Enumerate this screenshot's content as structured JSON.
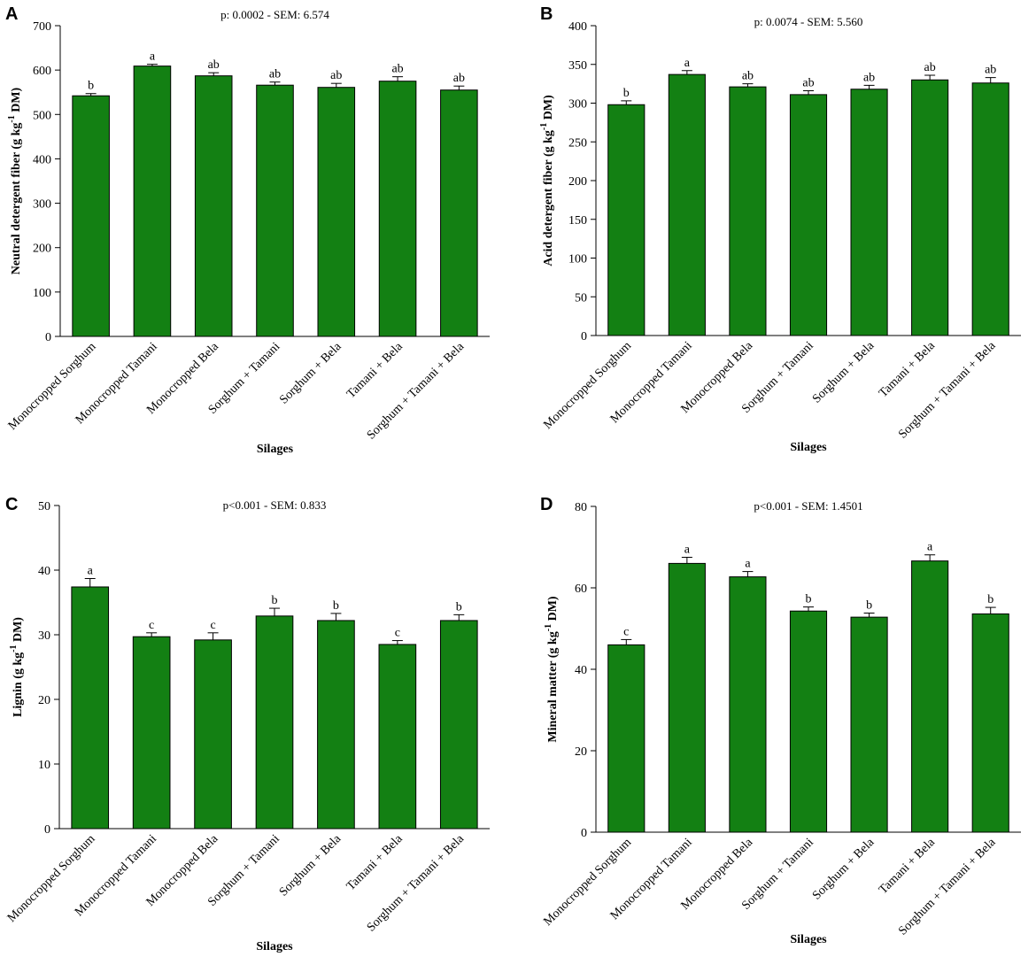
{
  "categories": [
    "Monocropped Sorghum",
    "Monocropped Tamani",
    "Monocropped Bela",
    "Sorghum + Tamani",
    "Sorghum + Bela",
    "Tamani + Bela",
    "Sorghum + Tamani + Bela"
  ],
  "colors": {
    "bar_fill": "#138013",
    "bar_stroke": "#000000",
    "axis": "#000000"
  },
  "chart_data": [
    {
      "type": "bar",
      "panel": "A",
      "annotation": "p: 0.0002 - SEM: 6.574",
      "xlabel": "Silages",
      "ylabel_main": "Neutral detergent fiber (g kg",
      "ylabel_sup": "-1",
      "ylabel_end": " DM)",
      "ylim": [
        0,
        700
      ],
      "yticks": [
        0,
        100,
        200,
        300,
        400,
        500,
        600,
        700
      ],
      "values": [
        542,
        609,
        587,
        566,
        561,
        575,
        555
      ],
      "errors": [
        5,
        4,
        7,
        7,
        9,
        10,
        9
      ],
      "letters": [
        "b",
        "a",
        "ab",
        "ab",
        "ab",
        "ab",
        "ab"
      ]
    },
    {
      "type": "bar",
      "panel": "B",
      "annotation": "p: 0.0074 - SEM: 5.560",
      "xlabel": "Silages",
      "ylabel_main": "Acid detergent fiber (g kg",
      "ylabel_sup": "-1",
      "ylabel_end": " DM)",
      "ylim": [
        0,
        400
      ],
      "yticks": [
        0,
        50,
        100,
        150,
        200,
        250,
        300,
        350,
        400
      ],
      "values": [
        298,
        337,
        321,
        311,
        318,
        330,
        326
      ],
      "errors": [
        5,
        5,
        4,
        5,
        5,
        6,
        7
      ],
      "letters": [
        "b",
        "a",
        "ab",
        "ab",
        "ab",
        "ab",
        "ab"
      ]
    },
    {
      "type": "bar",
      "panel": "C",
      "annotation": "p<0.001 - SEM: 0.833",
      "xlabel": "Silages",
      "ylabel_main": "Lignin (g kg",
      "ylabel_sup": "-1",
      "ylabel_end": " DM)",
      "ylim": [
        0,
        50
      ],
      "yticks": [
        0,
        10,
        20,
        30,
        40,
        50
      ],
      "values": [
        37.4,
        29.7,
        29.2,
        32.9,
        32.2,
        28.5,
        32.2
      ],
      "errors": [
        1.3,
        0.6,
        1.1,
        1.2,
        1.1,
        0.6,
        0.9
      ],
      "letters": [
        "a",
        "c",
        "c",
        "b",
        "b",
        "c",
        "b"
      ]
    },
    {
      "type": "bar",
      "panel": "D",
      "annotation": "p<0.001 - SEM: 1.4501",
      "xlabel": "Silages",
      "ylabel_main": "Mineral matter (g kg",
      "ylabel_sup": "-1",
      "ylabel_end": " DM)",
      "ylim": [
        0,
        80
      ],
      "yticks": [
        0,
        20,
        40,
        60,
        80
      ],
      "values": [
        46,
        66,
        62.7,
        54.3,
        52.8,
        66.6,
        53.6
      ],
      "errors": [
        1.3,
        1.5,
        1.3,
        1.0,
        1.0,
        1.5,
        1.6
      ],
      "letters": [
        "c",
        "a",
        "a",
        "b",
        "b",
        "a",
        "b"
      ]
    }
  ]
}
